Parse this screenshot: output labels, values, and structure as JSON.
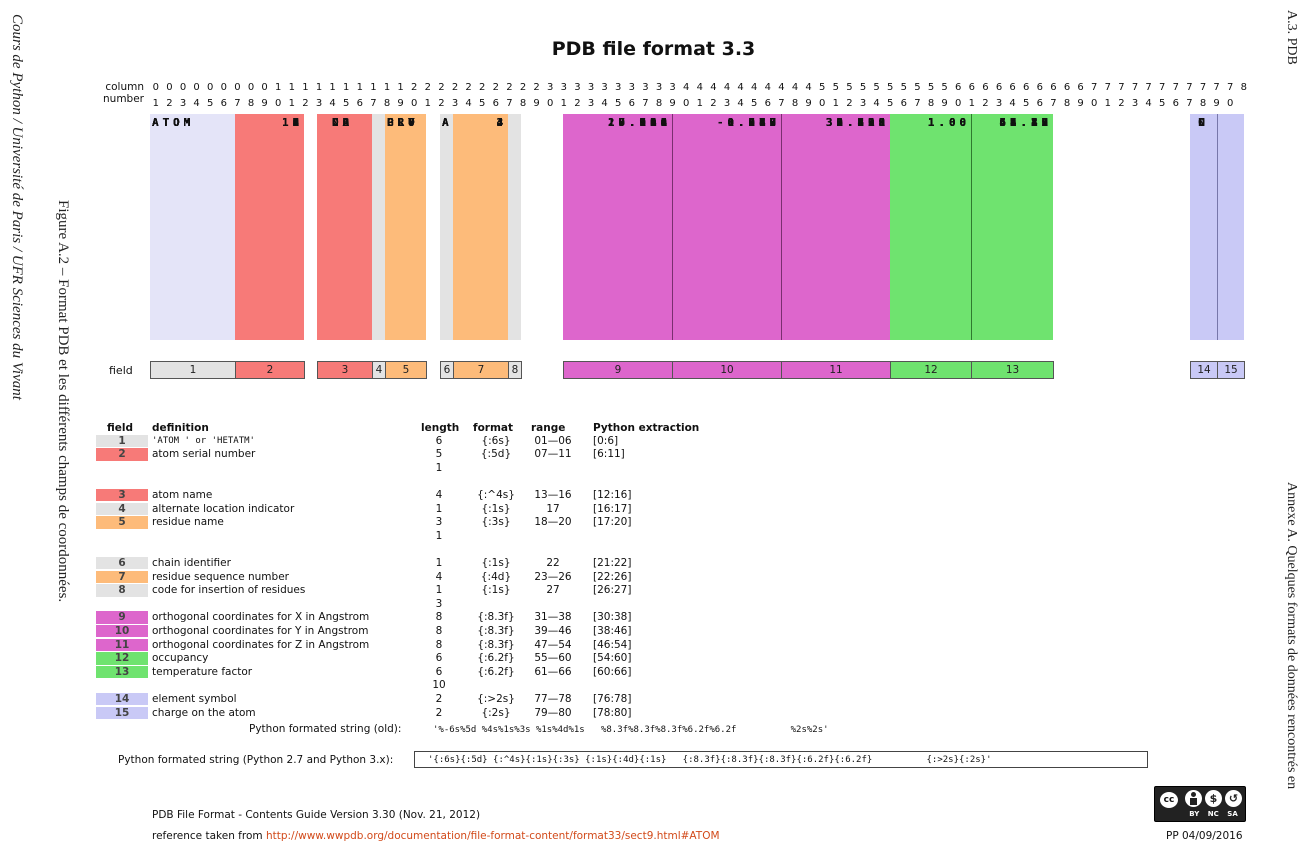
{
  "sidebar_left": {
    "text": "Cours de Python / Université de Paris / UFR Sciences du Vivant"
  },
  "caption": {
    "text": "Figure A.2 – Format PDB et les différents champs de coordonnées."
  },
  "sidebar_right": {
    "section": "A.3. PDB",
    "chapter": "Annexe A. Quelques formats de données rencontrés en"
  },
  "title": "PDB file format 3.3",
  "ruler": {
    "label_top": "column",
    "label_bottom": "number",
    "tens": "000000000111111111122222222223333333333444444444455555555556666666666777777777778",
    "units": "12345678901234567890123456789012345678901234567890123456789012345678901234567890"
  },
  "atoms": [
    {
      "record": "ATOM",
      "serial": "1",
      "name": "N",
      "resn": "GLY",
      "chain": "A",
      "resi": "3",
      "x": "17.119",
      "y": "0.186",
      "z": "36.320",
      "occ": "1.00",
      "b": "64.10",
      "elem": "N"
    },
    {
      "record": "ATOM",
      "serial": "2",
      "name": "CA",
      "resn": "GLY",
      "chain": "A",
      "resi": "3",
      "x": "16.944",
      "y": "-0.800",
      "z": "35.208",
      "occ": "1.00",
      "b": "63.46",
      "elem": "C"
    },
    {
      "record": "ATOM",
      "serial": "3",
      "name": "C",
      "resn": "GLY",
      "chain": "A",
      "resi": "3",
      "x": "16.818",
      "y": "-0.087",
      "z": "33.851",
      "occ": "1.00",
      "b": "61.22",
      "elem": "C"
    },
    {
      "record": "ATOM",
      "serial": "4",
      "name": "O",
      "resn": "GLY",
      "chain": "A",
      "resi": "3",
      "x": "15.721",
      "y": "0.337",
      "z": "33.463",
      "occ": "1.00",
      "b": "62.81",
      "elem": "O"
    },
    {
      "record": "ATOM",
      "serial": "5",
      "name": "N",
      "resn": "PRO",
      "chain": "A",
      "resi": "4",
      "x": "17.944",
      "y": "0.077",
      "z": "33.129",
      "occ": "1.00",
      "b": "57.39",
      "elem": "N"
    },
    {
      "record": "ATOM",
      "serial": "6",
      "name": "CA",
      "resn": "PRO",
      "chain": "A",
      "resi": "4",
      "x": "17.950",
      "y": "0.742",
      "z": "31.815",
      "occ": "1.00",
      "b": "53.27",
      "elem": "C"
    },
    {
      "record": "ATOM",
      "serial": "7",
      "name": "C",
      "resn": "PRO",
      "chain": "A",
      "resi": "4",
      "x": "18.005",
      "y": "-0.247",
      "z": "30.629",
      "occ": "1.00",
      "b": "49.78",
      "elem": "C"
    },
    {
      "record": "ATOM",
      "serial": "8",
      "name": "O",
      "resn": "PRO",
      "chain": "A",
      "resi": "4",
      "x": "19.086",
      "y": "-0.678",
      "z": "30.218",
      "occ": "1.00",
      "b": "48.17",
      "elem": "O"
    },
    {
      "record": "ATOM",
      "serial": "9",
      "name": "CB",
      "resn": "PRO",
      "chain": "A",
      "resi": "4",
      "x": "19.191",
      "y": "1.613",
      "z": "31.898",
      "occ": "1.00",
      "b": "54.33",
      "elem": "C"
    },
    {
      "record": "ATOM",
      "serial": "10",
      "name": "CG",
      "resn": "PRO",
      "chain": "A",
      "resi": "4",
      "x": "20.161",
      "y": "0.686",
      "z": "32.625",
      "occ": "1.00",
      "b": "55.45",
      "elem": "C"
    },
    {
      "record": "ATOM",
      "serial": "11",
      "name": "CD",
      "resn": "PRO",
      "chain": "A",
      "resi": "4",
      "x": "19.305",
      "y": "0.019",
      "z": "33.701",
      "occ": "1.00",
      "b": "55.83",
      "elem": "C"
    }
  ],
  "field_row_label": "field",
  "field_numbers": [
    "1",
    "2",
    "3",
    "4",
    "5",
    "6",
    "7",
    "8",
    "9",
    "10",
    "11",
    "12",
    "13",
    "14",
    "15"
  ],
  "colors": {
    "record": "#e4e4f8",
    "red": "#f77a78",
    "gray": "#e3e3e3",
    "orange": "#fdbb7a",
    "magenta": "#dd66cc",
    "green": "#6fe36f",
    "lavender": "#c9c9f6"
  },
  "definitions_header": {
    "field": "field",
    "definition": "definition",
    "length": "length",
    "format": "format",
    "range": "range",
    "python": "Python extraction"
  },
  "definitions": [
    {
      "field": "1",
      "definition": "'ATOM  ' or 'HETATM'",
      "length": "6",
      "format": "{:6s}",
      "range": "01—06",
      "python": "[0:6]"
    },
    {
      "field": "2",
      "definition": "atom serial number",
      "length": "5",
      "format": "{:5d}",
      "range": "07—11",
      "python": "[6:11]"
    },
    {
      "field": "",
      "definition": "",
      "length": "1",
      "format": "",
      "range": "",
      "python": ""
    },
    {
      "field": "",
      "definition": "",
      "length": "",
      "format": "",
      "range": "",
      "python": ""
    },
    {
      "field": "3",
      "definition": "atom name",
      "length": "4",
      "format": "{:^4s}",
      "range": "13—16",
      "python": "[12:16]"
    },
    {
      "field": "4",
      "definition": "alternate location indicator",
      "length": "1",
      "format": "{:1s}",
      "range": "17",
      "python": "[16:17]"
    },
    {
      "field": "5",
      "definition": "residue name",
      "length": "3",
      "format": "{:3s}",
      "range": "18—20",
      "python": "[17:20]"
    },
    {
      "field": "",
      "definition": "",
      "length": "1",
      "format": "",
      "range": "",
      "python": ""
    },
    {
      "field": "",
      "definition": "",
      "length": "",
      "format": "",
      "range": "",
      "python": ""
    },
    {
      "field": "6",
      "definition": "chain identifier",
      "length": "1",
      "format": "{:1s}",
      "range": "22",
      "python": "[21:22]"
    },
    {
      "field": "7",
      "definition": "residue sequence number",
      "length": "4",
      "format": "{:4d}",
      "range": "23—26",
      "python": "[22:26]"
    },
    {
      "field": "8",
      "definition": "code for insertion of residues",
      "length": "1",
      "format": "{:1s}",
      "range": "27",
      "python": "[26:27]"
    },
    {
      "field": "",
      "definition": "",
      "length": "3",
      "format": "",
      "range": "",
      "python": ""
    },
    {
      "field": "9",
      "definition": "orthogonal coordinates for X in Angstrom",
      "length": "8",
      "format": "{:8.3f}",
      "range": "31—38",
      "python": "[30:38]"
    },
    {
      "field": "10",
      "definition": "orthogonal coordinates for Y in Angstrom",
      "length": "8",
      "format": "{:8.3f}",
      "range": "39—46",
      "python": "[38:46]"
    },
    {
      "field": "11",
      "definition": "orthogonal coordinates for Z in Angstrom",
      "length": "8",
      "format": "{:8.3f}",
      "range": "47—54",
      "python": "[46:54]"
    },
    {
      "field": "12",
      "definition": "occupancy",
      "length": "6",
      "format": "{:6.2f}",
      "range": "55—60",
      "python": "[54:60]"
    },
    {
      "field": "13",
      "definition": "temperature factor",
      "length": "6",
      "format": "{:6.2f}",
      "range": "61—66",
      "python": "[60:66]"
    },
    {
      "field": "",
      "definition": "",
      "length": "10",
      "format": "",
      "range": "",
      "python": ""
    },
    {
      "field": "14",
      "definition": "element symbol",
      "length": "2",
      "format": "{:>2s}",
      "range": "77—78",
      "python": "[76:78]"
    },
    {
      "field": "15",
      "definition": "charge on the atom",
      "length": "2",
      "format": "{:2s}",
      "range": "79—80",
      "python": "[78:80]"
    }
  ],
  "format_old": {
    "label": "Python formated string (old):",
    "value": "'%-6s%5d %4s%1s%3s %1s%4d%1s   %8.3f%8.3f%8.3f%6.2f%6.2f          %2s%2s'"
  },
  "format_new": {
    "label": "Python formated string (Python 2.7 and Python 3.x):",
    "value": "'{:6s}{:5d} {:^4s}{:1s}{:3s} {:1s}{:4d}{:1s}   {:8.3f}{:8.3f}{:8.3f}{:6.2f}{:6.2f}          {:>2s}{:2s}'"
  },
  "footer": {
    "source": "PDB File Format - Contents Guide Version 3.30 (Nov. 21, 2012)",
    "ref_prefix": "reference taken from ",
    "ref_link": "http://www.wwpdb.org/documentation/file-format-content/format33/sect9.html#ATOM",
    "license_labels": [
      "BY",
      "NC",
      "SA"
    ],
    "stamp": "PP 04/09/2016"
  }
}
